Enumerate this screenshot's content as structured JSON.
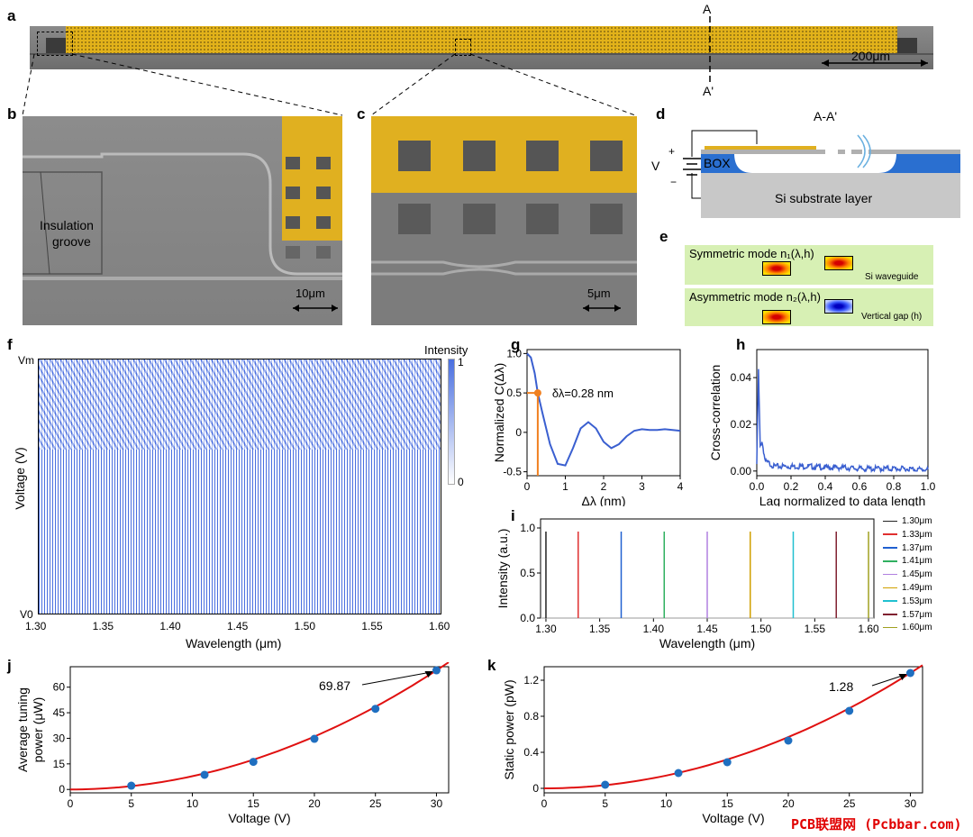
{
  "panel_labels": {
    "a": "a",
    "b": "b",
    "c": "c",
    "d": "d",
    "e": "e",
    "f": "f",
    "g": "g",
    "h": "h",
    "i": "i",
    "j": "j",
    "k": "k"
  },
  "panel_a": {
    "section_top": "A",
    "section_bottom": "A'",
    "scale": "200μm"
  },
  "panel_b": {
    "annotation": [
      "Insulation",
      "groove"
    ],
    "scale": "10μm"
  },
  "panel_c": {
    "scale": "5μm"
  },
  "panel_d": {
    "title": "A-A'",
    "box_label": "BOX",
    "substrate_label": "Si substrate layer",
    "voltage_label": "V",
    "plus": "+",
    "minus": "−"
  },
  "panel_e": {
    "symmetric": "Symmetric mode n₁(λ,h)",
    "asymmetric": "Asymmetric mode n₂(λ,h)",
    "waveguide_note": "Si waveguide",
    "gap_note": "Vertical gap (h)"
  },
  "panel_f": {
    "ylabel": "Voltage (V)",
    "xlabel": "Wavelength (μm)",
    "y_top": "Vm",
    "y_bottom": "V0",
    "colorbar_title": "Intensity",
    "colorbar_max": "1",
    "colorbar_min": "0",
    "xticks": [
      "1.30",
      "1.35",
      "1.40",
      "1.45",
      "1.50",
      "1.55",
      "1.60"
    ]
  },
  "panel_g": {
    "ylabel": "Normalized C(Δλ)",
    "xlabel": "Δλ (nm)",
    "annotation": "δλ=0.28 nm",
    "xticks": [
      "0",
      "1",
      "2",
      "3",
      "4"
    ],
    "yticks": [
      "1.0",
      "0.5",
      "0",
      "-0.5"
    ]
  },
  "panel_h": {
    "ylabel": "Cross-correlation",
    "xlabel": "Lag normalized to data length",
    "xticks": [
      "0.0",
      "0.2",
      "0.4",
      "0.6",
      "0.8",
      "1.0"
    ],
    "yticks": [
      "0.04",
      "0.02",
      "0.00"
    ]
  },
  "panel_i": {
    "ylabel": "Intensity (a.u.)",
    "xlabel": "Wavelength (μm)",
    "xticks": [
      "1.30",
      "1.35",
      "1.40",
      "1.45",
      "1.50",
      "1.55",
      "1.60"
    ],
    "yticks": [
      "1.0",
      "0.5",
      "0.0"
    ],
    "legend": [
      {
        "label": "1.30μm",
        "color": "#222222"
      },
      {
        "label": "1.33μm",
        "color": "#e03030"
      },
      {
        "label": "1.37μm",
        "color": "#2060d0"
      },
      {
        "label": "1.41μm",
        "color": "#30b060"
      },
      {
        "label": "1.45μm",
        "color": "#b080e0"
      },
      {
        "label": "1.49μm",
        "color": "#d0a000"
      },
      {
        "label": "1.53μm",
        "color": "#20c0d0"
      },
      {
        "label": "1.57μm",
        "color": "#802030"
      },
      {
        "label": "1.60μm",
        "color": "#a0a020"
      }
    ]
  },
  "panel_j": {
    "ylabel": [
      "Average tuning",
      "power (μW)"
    ],
    "xlabel": "Voltage (V)",
    "annotation": "69.87",
    "xticks": [
      "0",
      "5",
      "10",
      "15",
      "20",
      "25",
      "30"
    ],
    "yticks": [
      "0",
      "15",
      "30",
      "45",
      "60"
    ]
  },
  "panel_k": {
    "ylabel": "Static power (pW)",
    "xlabel": "Voltage (V)",
    "annotation": "1.28",
    "xticks": [
      "0",
      "5",
      "10",
      "15",
      "20",
      "25",
      "30"
    ],
    "yticks": [
      "0",
      "0.4",
      "0.8",
      "1.2"
    ]
  },
  "watermark": "PCB联盟网 (Pcbbar.com)",
  "chart_data": [
    {
      "type": "line",
      "panel": "g",
      "x": [
        0,
        0.1,
        0.2,
        0.28,
        0.4,
        0.6,
        0.8,
        1.0,
        1.2,
        1.4,
        1.6,
        1.8,
        2.0,
        2.2,
        2.4,
        2.6,
        2.8,
        3.0,
        3.2,
        3.4,
        3.6,
        3.8,
        4.0
      ],
      "y": [
        1.0,
        0.95,
        0.75,
        0.5,
        0.25,
        -0.15,
        -0.4,
        -0.42,
        -0.2,
        0.05,
        0.13,
        0.05,
        -0.12,
        -0.2,
        -0.15,
        -0.05,
        0.02,
        0.04,
        0.03,
        0.03,
        0.04,
        0.03,
        0.02
      ],
      "xlim": [
        0,
        4
      ],
      "ylim": [
        -0.55,
        1.05
      ]
    },
    {
      "type": "line",
      "panel": "h",
      "x": [
        0.0,
        0.01,
        0.02,
        0.03,
        0.05,
        0.08,
        0.1,
        0.15,
        0.2,
        0.3,
        0.4,
        0.5,
        0.6,
        0.7,
        0.8,
        0.9,
        1.0
      ],
      "y": [
        0.003,
        0.043,
        0.01,
        0.013,
        0.004,
        0.003,
        0.002,
        0.002,
        0.002,
        0.002,
        0.0015,
        0.0015,
        0.001,
        0.001,
        0.001,
        0.0008,
        0.0005
      ],
      "xlim": [
        0,
        1.0
      ],
      "ylim": [
        -0.002,
        0.052
      ]
    },
    {
      "type": "line",
      "panel": "i",
      "peaks": [
        1.3,
        1.33,
        1.37,
        1.41,
        1.45,
        1.49,
        1.53,
        1.57,
        1.6
      ],
      "peak_height": 0.96,
      "xlim": [
        1.295,
        1.605
      ],
      "ylim": [
        0,
        1.1
      ]
    },
    {
      "type": "scatter",
      "panel": "j",
      "x": [
        5,
        11,
        15,
        20,
        25,
        30
      ],
      "y": [
        2.2,
        8.6,
        16.2,
        29.7,
        47.3,
        69.87
      ],
      "fit": "quadratic",
      "xlim": [
        0,
        31
      ],
      "ylim": [
        -2,
        72
      ]
    },
    {
      "type": "scatter",
      "panel": "k",
      "x": [
        5,
        11,
        15,
        20,
        25,
        30
      ],
      "y": [
        0.04,
        0.17,
        0.29,
        0.53,
        0.86,
        1.28
      ],
      "fit": "quadratic",
      "xlim": [
        0,
        31
      ],
      "ylim": [
        -0.05,
        1.35
      ]
    }
  ]
}
